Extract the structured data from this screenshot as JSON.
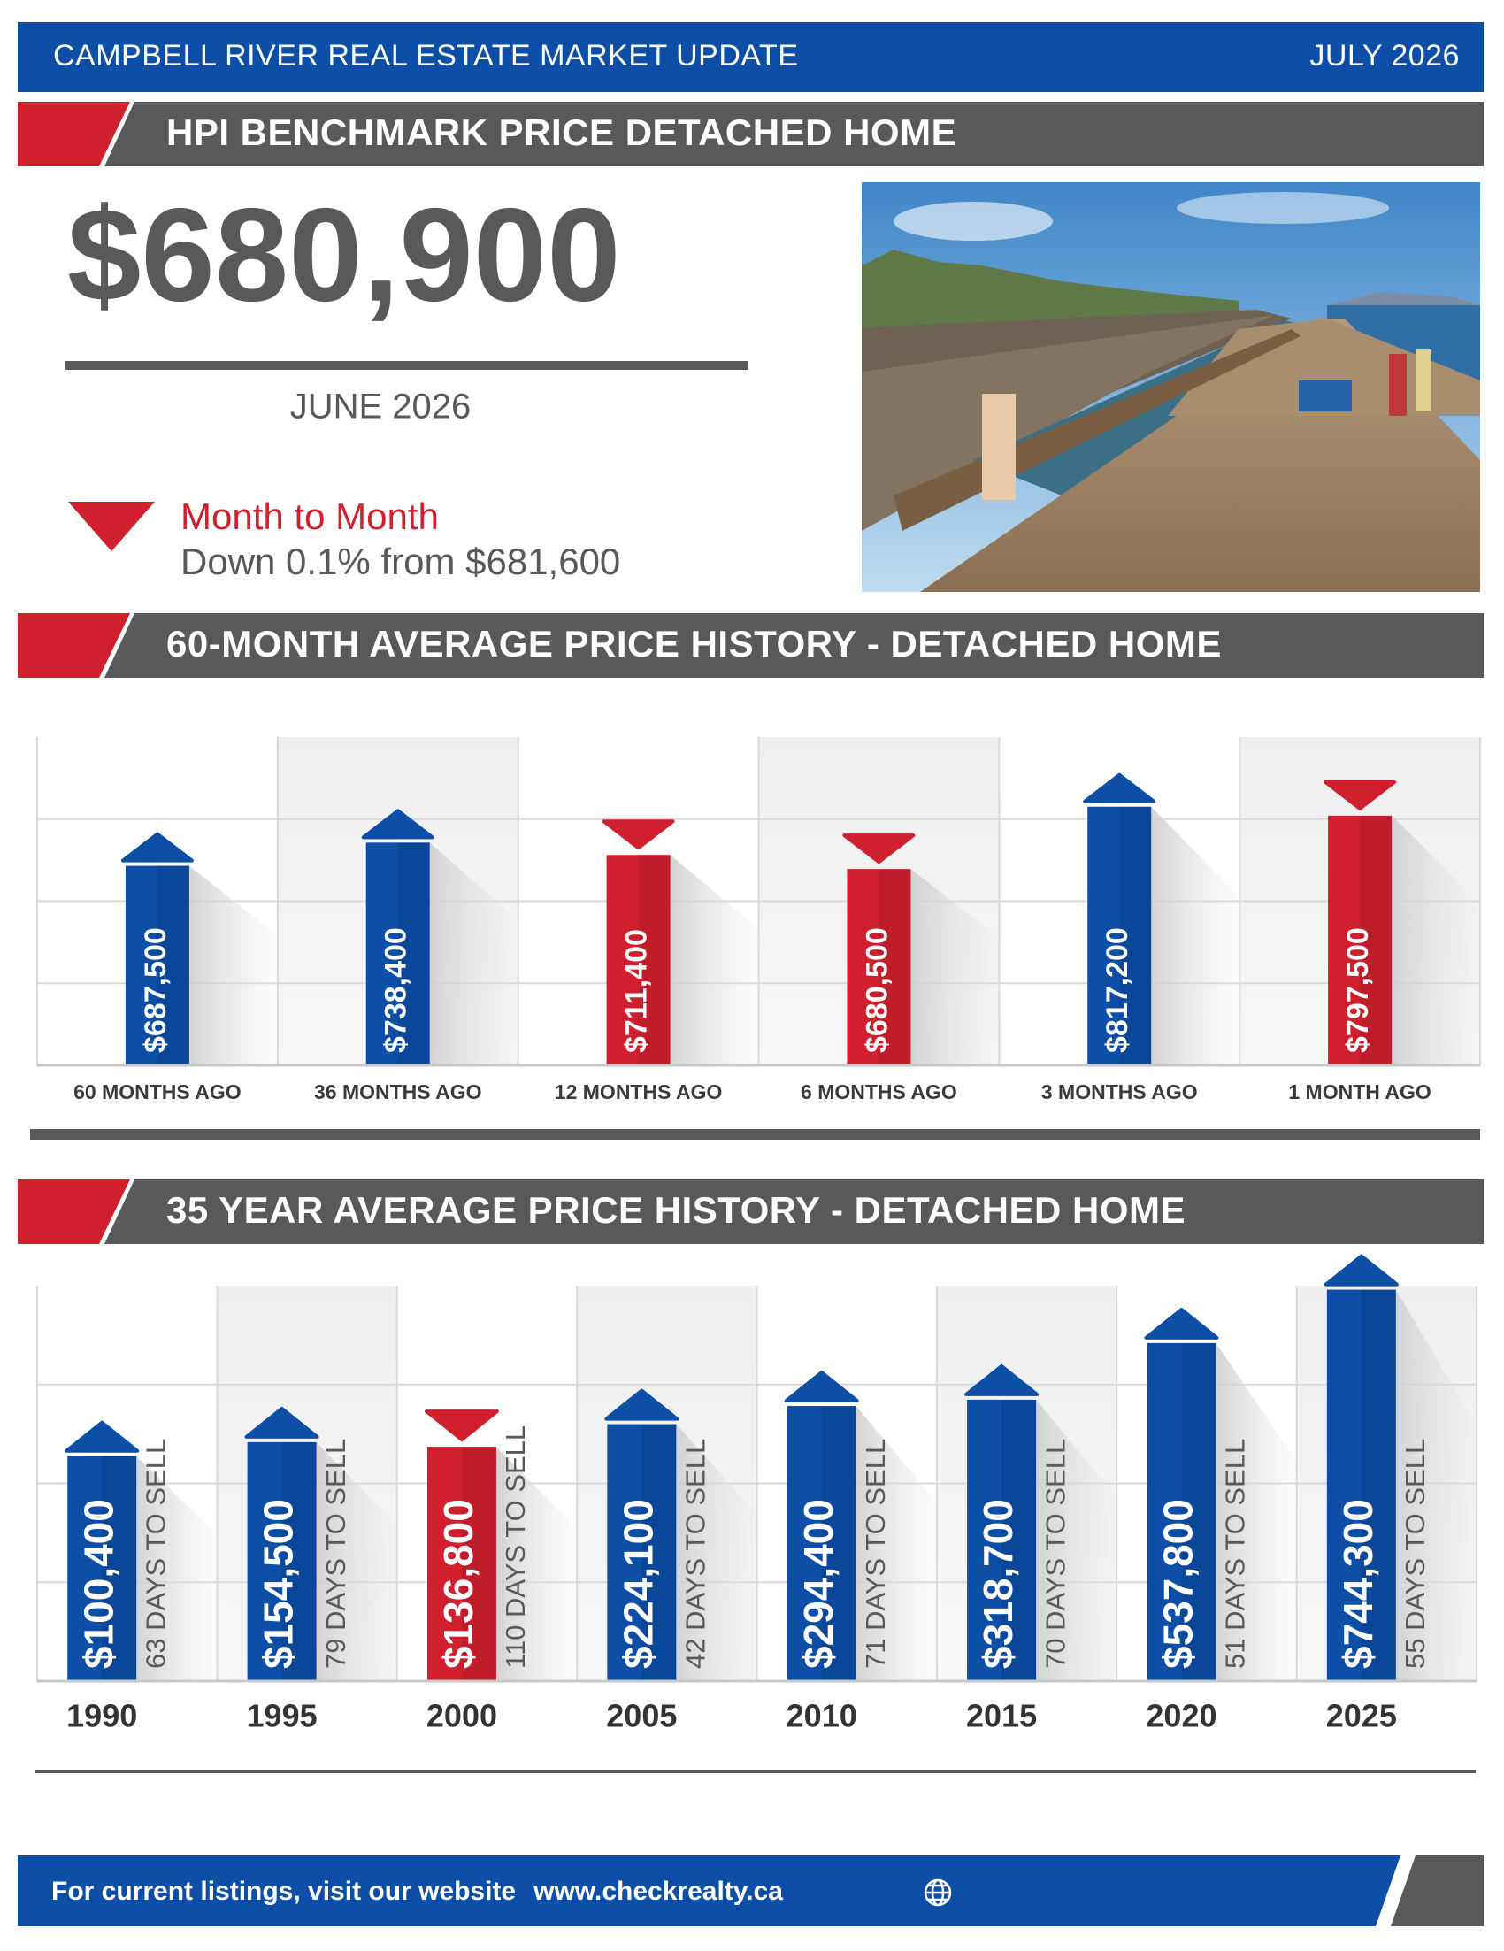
{
  "header": {
    "title": "CAMPBELL RIVER REAL ESTATE MARKET UPDATE",
    "date": "JULY 2026"
  },
  "benchmark": {
    "heading": "HPI BENCHMARK PRICE DETACHED HOME",
    "price": "$680,900",
    "period": "JUNE 2026",
    "change_label": "Month to Month",
    "change_text": "Down 0.1% from $681,600"
  },
  "chart_data": [
    {
      "type": "bar",
      "title": "60-MONTH AVERAGE PRICE HISTORY - DETACHED HOME",
      "categories": [
        "60 MONTHS AGO",
        "36 MONTHS AGO",
        "12 MONTHS AGO",
        "6 MONTHS AGO",
        "3 MONTHS AGO",
        "1 MONTH AGO"
      ],
      "values": [
        687500,
        738400,
        711400,
        680500,
        817200,
        797500
      ],
      "value_labels": [
        "$687,500",
        "$738,400",
        "$711,400",
        "$680,500",
        "$817,200",
        "$797,500"
      ],
      "colors": [
        "#0d4ea6",
        "#0d4ea6",
        "#d0202e",
        "#d0202e",
        "#0d4ea6",
        "#d0202e"
      ],
      "ylim": [
        250000,
        970000
      ]
    },
    {
      "type": "bar",
      "title": "35 YEAR AVERAGE PRICE HISTORY - DETACHED HOME",
      "categories": [
        "1990",
        "1995",
        "2000",
        "2005",
        "2010",
        "2015",
        "2020",
        "2025"
      ],
      "values": [
        100400,
        154500,
        136800,
        224100,
        294400,
        318700,
        537800,
        744300
      ],
      "value_labels": [
        "$100,400",
        "$154,500",
        "$136,800",
        "$224,100",
        "$294,400",
        "$318,700",
        "$537,800",
        "$744,300"
      ],
      "annotations": [
        "63 DAYS TO SELL",
        "79 DAYS TO SELL",
        "110 DAYS TO SELL",
        "42 DAYS TO SELL",
        "71 DAYS TO SELL",
        "70 DAYS TO SELL",
        "51 DAYS TO SELL",
        "55 DAYS TO SELL"
      ],
      "colors": [
        "#0d4ea6",
        "#0d4ea6",
        "#d0202e",
        "#0d4ea6",
        "#0d4ea6",
        "#0d4ea6",
        "#0d4ea6",
        "#0d4ea6"
      ],
      "ylim": [
        -770000,
        760000
      ]
    }
  ],
  "footer": {
    "text": "For current listings, visit our website",
    "url": "www.checkrealty.ca"
  }
}
